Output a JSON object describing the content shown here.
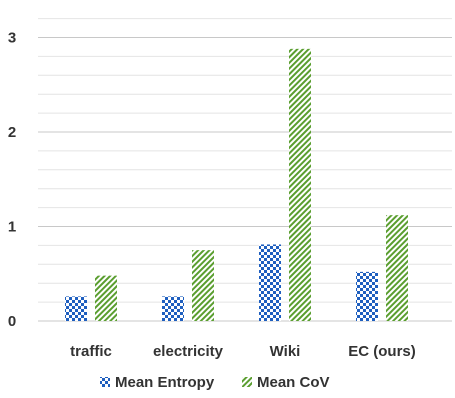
{
  "chart_data": {
    "type": "bar",
    "categories": [
      "traffic",
      "electricity",
      "Wiki",
      "EC (ours)"
    ],
    "series": [
      {
        "name": "Mean Entropy",
        "values": [
          0.26,
          0.26,
          0.81,
          0.52
        ],
        "color": "#1f5fbf",
        "pattern": "checkerboard"
      },
      {
        "name": "Mean CoV",
        "values": [
          0.48,
          0.75,
          2.88,
          1.12
        ],
        "color": "#5a9e2f",
        "pattern": "diagonal-hatch"
      }
    ],
    "y_ticks": [
      "0",
      "1",
      "2",
      "3"
    ],
    "ylim": [
      0,
      3.35
    ],
    "grid": true,
    "legend_position": "bottom-center",
    "title": "",
    "xlabel": "",
    "ylabel": ""
  }
}
